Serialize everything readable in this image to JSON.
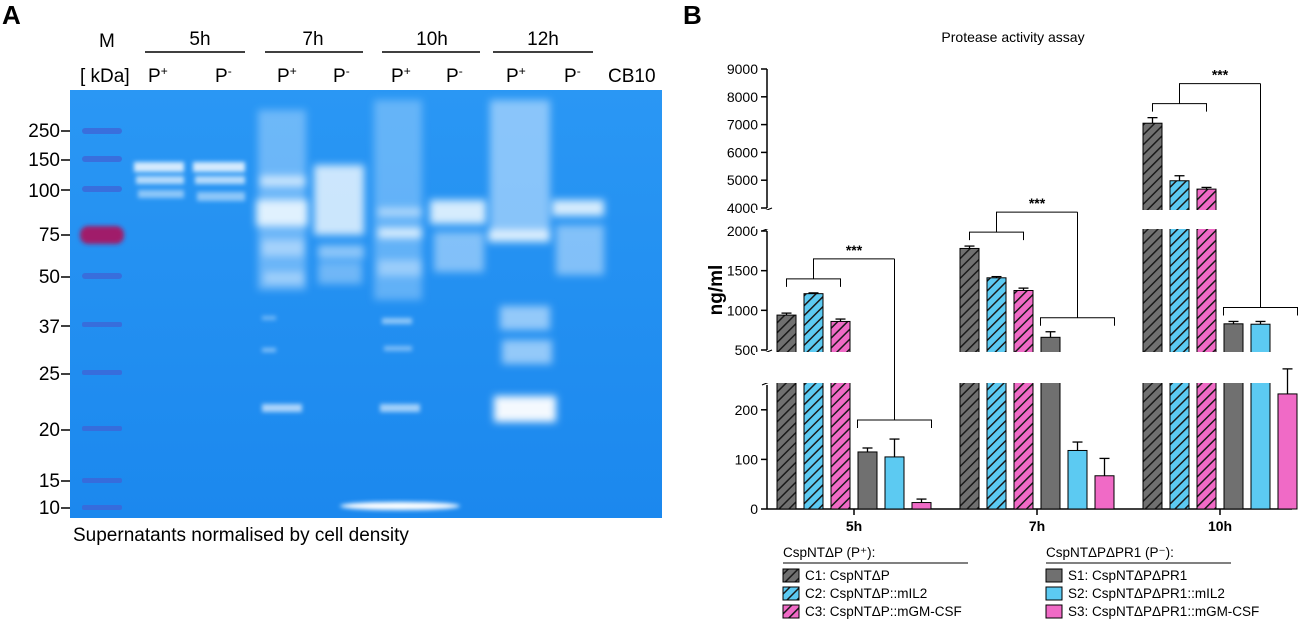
{
  "figure": {
    "panel_a": {
      "letter": "A",
      "marker_label": "M",
      "kda_label": "[ kDa]",
      "timepoints": [
        {
          "label": "5h",
          "lanes": [
            {
              "base": "P",
              "sup": "+"
            },
            {
              "base": "P",
              "sup": "-"
            }
          ]
        },
        {
          "label": "7h",
          "lanes": [
            {
              "base": "P",
              "sup": "+"
            },
            {
              "base": "P",
              "sup": "-"
            }
          ]
        },
        {
          "label": "10h",
          "lanes": [
            {
              "base": "P",
              "sup": "+"
            },
            {
              "base": "P",
              "sup": "-"
            }
          ]
        },
        {
          "label": "12h",
          "lanes": [
            {
              "base": "P",
              "sup": "+"
            },
            {
              "base": "P",
              "sup": "-"
            }
          ]
        }
      ],
      "control_label": "CB10",
      "mw_markers": [
        "250",
        "150",
        "100",
        "75",
        "50",
        "37",
        "25",
        "20",
        "15",
        "10"
      ],
      "caption": "Supernatants normalised by cell density",
      "gel_color": "#1f8ef2"
    },
    "panel_b": {
      "letter": "B",
      "chart_title": "Protease activity assay",
      "significance": "***"
    }
  },
  "chart_data": {
    "type": "bar",
    "title": "Protease activity assay",
    "ylabel": "ng/ml",
    "xlabel": "",
    "categories": [
      "5h",
      "7h",
      "10h"
    ],
    "y_axis_segments": [
      {
        "range": [
          0,
          250
        ],
        "ticks": [
          0,
          100,
          200
        ]
      },
      {
        "range": [
          500,
          2000
        ],
        "ticks": [
          500,
          1000,
          1500,
          2000
        ]
      },
      {
        "range": [
          4000,
          9000
        ],
        "ticks": [
          4000,
          5000,
          6000,
          7000,
          8000,
          9000
        ]
      }
    ],
    "series": [
      {
        "name": "C1: CspNTΔP",
        "group": "CspNTΔP (P⁺):",
        "pattern": "hatched",
        "color": "#707070",
        "values": [
          940,
          1780,
          7050
        ],
        "errors": [
          25,
          30,
          200
        ]
      },
      {
        "name": "C2: CspNTΔP::mIL2",
        "group": "CspNTΔP (P⁺):",
        "pattern": "hatched",
        "color": "#5ccaf2",
        "values": [
          1210,
          1410,
          4980
        ],
        "errors": [
          10,
          15,
          180
        ]
      },
      {
        "name": "C3: CspNTΔP::mGM-CSF",
        "group": "CspNTΔP (P⁺):",
        "pattern": "hatched",
        "color": "#f06ac6",
        "values": [
          860,
          1250,
          4680
        ],
        "errors": [
          30,
          30,
          60
        ]
      },
      {
        "name": "S1: CspNTΔPΔPR1",
        "group": "CspNTΔPΔPR1 (P⁻):",
        "pattern": "solid",
        "color": "#707070",
        "values": [
          115,
          660,
          830
        ],
        "errors": [
          8,
          70,
          30
        ]
      },
      {
        "name": "S2: CspNTΔPΔPR1::mIL2",
        "group": "CspNTΔPΔPR1 (P⁻):",
        "pattern": "solid",
        "color": "#5ccaf2",
        "values": [
          105,
          118,
          825
        ],
        "errors": [
          36,
          17,
          35
        ]
      },
      {
        "name": "S3: CspNTΔPΔPR1::mGM-CSF",
        "group": "CspNTΔPΔPR1 (P⁻):",
        "pattern": "solid",
        "color": "#f06ac6",
        "values": [
          13,
          67,
          232
        ],
        "errors": [
          7,
          35,
          30
        ]
      }
    ],
    "annotations": [
      "***",
      "***",
      "***"
    ],
    "legend": {
      "placement": "bottom",
      "groups": [
        "CspNTΔP (P⁺):",
        "CspNTΔPΔPR1 (P⁻):"
      ]
    },
    "grid": false
  }
}
